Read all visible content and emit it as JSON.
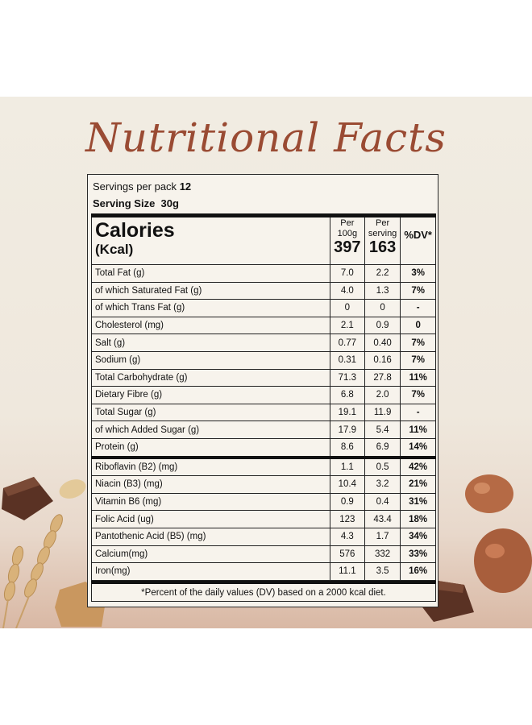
{
  "title": "Nutritional Facts",
  "servings_label": "Servings per pack",
  "servings_value": "12",
  "serving_size_label": "Serving Size",
  "serving_size_value": "30g",
  "calories_label": "Calories",
  "calories_unit": "(Kcal)",
  "col_per100_line1": "Per",
  "col_per100_line2": "100g",
  "col_serv_line1": "Per",
  "col_serv_line2": "serving",
  "col_dv": "%DV*",
  "calories_per100": "397",
  "calories_serving": "163",
  "rows": [
    {
      "name": "Total Fat (g)",
      "per100": "7.0",
      "serving": "2.2",
      "dv": "3%"
    },
    {
      "name": " of which Saturated Fat (g)",
      "per100": "4.0",
      "serving": "1.3",
      "dv": "7%"
    },
    {
      "name": " of which Trans Fat (g)",
      "per100": "0",
      "serving": "0",
      "dv": "-"
    },
    {
      "name": "Cholesterol (mg)",
      "per100": "2.1",
      "serving": "0.9",
      "dv": "0"
    },
    {
      "name": "Salt (g)",
      "per100": "0.77",
      "serving": "0.40",
      "dv": "7%"
    },
    {
      "name": "Sodium (g)",
      "per100": "0.31",
      "serving": "0.16",
      "dv": "7%"
    },
    {
      "name": "Total Carbohydrate (g)",
      "per100": "71.3",
      "serving": "27.8",
      "dv": "11%"
    },
    {
      "name": "Dietary Fibre (g)",
      "per100": "6.8",
      "serving": "2.0",
      "dv": "7%"
    },
    {
      "name": "Total Sugar (g)",
      "per100": "19.1",
      "serving": "11.9",
      "dv": "-"
    },
    {
      "name": " of which Added Sugar (g)",
      "per100": "17.9",
      "serving": "5.4",
      "dv": "11%"
    },
    {
      "name": "Protein (g)",
      "per100": "8.6",
      "serving": "6.9",
      "dv": "14%"
    }
  ],
  "vitamins": [
    {
      "name": "Riboflavin (B2) (mg)",
      "per100": "1.1",
      "serving": "0.5",
      "dv": "42%"
    },
    {
      "name": "Niacin (B3) (mg)",
      "per100": "10.4",
      "serving": "3.2",
      "dv": "21%"
    },
    {
      "name": "Vitamin B6 (mg)",
      "per100": "0.9",
      "serving": "0.4",
      "dv": "31%"
    },
    {
      "name": "Folic Acid (ug)",
      "per100": "123",
      "serving": "43.4",
      "dv": "18%"
    },
    {
      "name": "Pantothenic Acid (B5) (mg)",
      "per100": "4.3",
      "serving": "1.7",
      "dv": "34%"
    },
    {
      "name": "Calcium(mg)",
      "per100": "576",
      "serving": "332",
      "dv": "33%"
    },
    {
      "name": "Iron(mg)",
      "per100": "11.1",
      "serving": "3.5",
      "dv": "16%"
    }
  ],
  "footnote": "*Percent of the daily values (DV) based on a 2000 kcal diet.",
  "colors": {
    "title": "#9a4b33",
    "chocolate": "#5a3224",
    "wheat": "#d9b27a"
  }
}
